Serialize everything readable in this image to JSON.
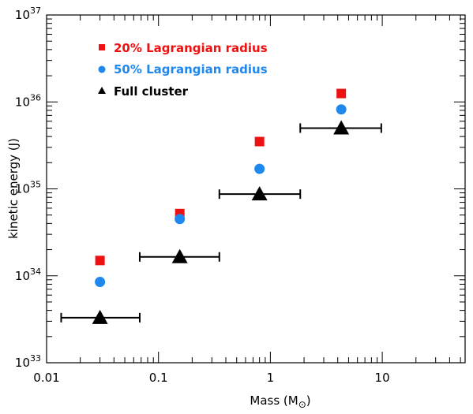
{
  "chart_data": {
    "type": "scatter",
    "title": "",
    "xlabel": "Mass (M",
    "xlabel_sub": "⊙",
    "xlabel_close": ")",
    "ylabel": "kinetic energy (J)",
    "x_scale": "log",
    "y_scale": "log",
    "xlim": [
      0.01,
      55
    ],
    "ylim": [
      1e+33,
      1e+37
    ],
    "x_tick_labels": [
      {
        "value": 0.01,
        "label": "0.01"
      },
      {
        "value": 0.1,
        "label": "0.1"
      },
      {
        "value": 1,
        "label": "1"
      },
      {
        "value": 10,
        "label": "10"
      }
    ],
    "y_tick_labels": [
      {
        "value": 1e+33,
        "base": "10",
        "exp": "33"
      },
      {
        "value": 1e+34,
        "base": "10",
        "exp": "34"
      },
      {
        "value": 1e+35,
        "base": "10",
        "exp": "35"
      },
      {
        "value": 1e+36,
        "base": "10",
        "exp": "36"
      },
      {
        "value": 1e+37,
        "base": "10",
        "exp": "37"
      }
    ],
    "legend_position": "top-left",
    "grid": false,
    "series": [
      {
        "name": "20% Lagrangian radius",
        "marker": "square",
        "color": "#ee1111",
        "points": [
          {
            "x": 0.03,
            "y": 1.5e+34
          },
          {
            "x": 0.155,
            "y": 5.2e+34
          },
          {
            "x": 0.8,
            "y": 3.5e+35
          },
          {
            "x": 4.3,
            "y": 1.25e+36
          }
        ]
      },
      {
        "name": "50% Lagrangian radius",
        "marker": "circle",
        "color": "#1e88ee",
        "points": [
          {
            "x": 0.03,
            "y": 8.5e+33
          },
          {
            "x": 0.155,
            "y": 4.5e+34
          },
          {
            "x": 0.8,
            "y": 1.7e+35
          },
          {
            "x": 4.3,
            "y": 8.2e+35
          }
        ]
      },
      {
        "name": "Full cluster",
        "marker": "triangle",
        "color": "#000000",
        "points": [
          {
            "x": 0.03,
            "y": 3.3e+33,
            "xerr": [
              0.0135,
              0.068
            ]
          },
          {
            "x": 0.155,
            "y": 1.65e+34,
            "xerr": [
              0.068,
              0.35
            ]
          },
          {
            "x": 0.8,
            "y": 8.7e+34,
            "xerr": [
              0.35,
              1.85
            ]
          },
          {
            "x": 4.3,
            "y": 5e+35,
            "xerr": [
              1.85,
              9.8
            ]
          }
        ]
      }
    ]
  }
}
